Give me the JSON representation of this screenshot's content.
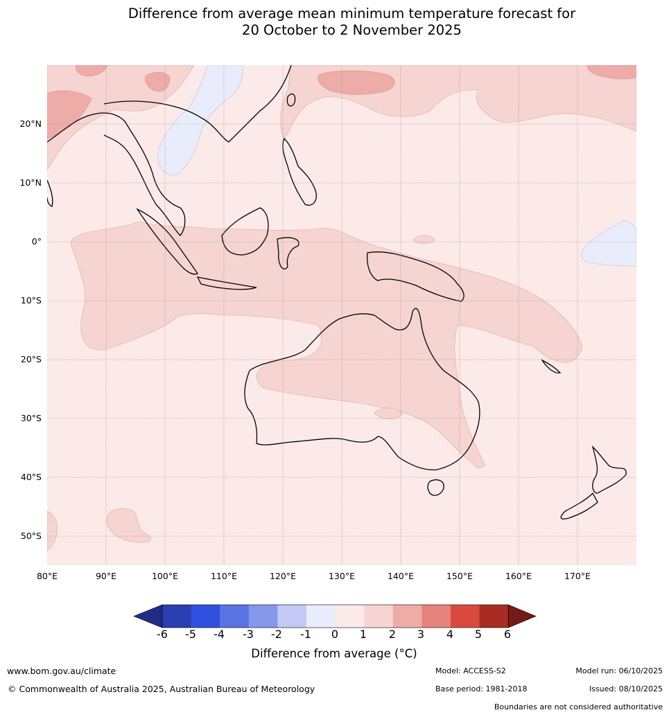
{
  "title": {
    "line1": "Difference from average mean minimum temperature forecast for",
    "line2": "20 October to 2 November 2025"
  },
  "map": {
    "lat_labels": [
      "20°N",
      "10°N",
      "0°",
      "10°S",
      "20°S",
      "30°S",
      "40°S",
      "50°S"
    ],
    "lon_labels": [
      "80°E",
      "90°E",
      "100°E",
      "110°E",
      "120°E",
      "130°E",
      "140°E",
      "150°E",
      "160°E",
      "170°E"
    ],
    "extent": {
      "lon_min": 80,
      "lon_max": 180,
      "lat_min": -55,
      "lat_max": 30
    },
    "background_color": "#fbeae8"
  },
  "colorbar": {
    "tick_labels": [
      "-6",
      "-5",
      "-4",
      "-3",
      "-2",
      "-1",
      "0",
      "1",
      "2",
      "3",
      "4",
      "5",
      "6"
    ],
    "colors": [
      "#1f2d86",
      "#2b3fb3",
      "#3050e0",
      "#5a73e3",
      "#8698ea",
      "#c2c9f4",
      "#e9edfb",
      "#fbeae8",
      "#f5d4d2",
      "#edaca8",
      "#e5837c",
      "#da4a3c",
      "#aa2b21",
      "#731a17"
    ],
    "label": "Difference from average (°C)"
  },
  "footer": {
    "website": "www.bom.gov.au/climate",
    "copyright": "© Commonwealth of Australia 2025, Australian Bureau of Meteorology",
    "model": "Model: ACCESS-S2",
    "base_period": "Base period: 1981-2018",
    "model_run": "Model run: 06/10/2025",
    "issued": "Issued: 08/10/2025",
    "disclaimer": "Boundaries are not considered authoritative"
  }
}
